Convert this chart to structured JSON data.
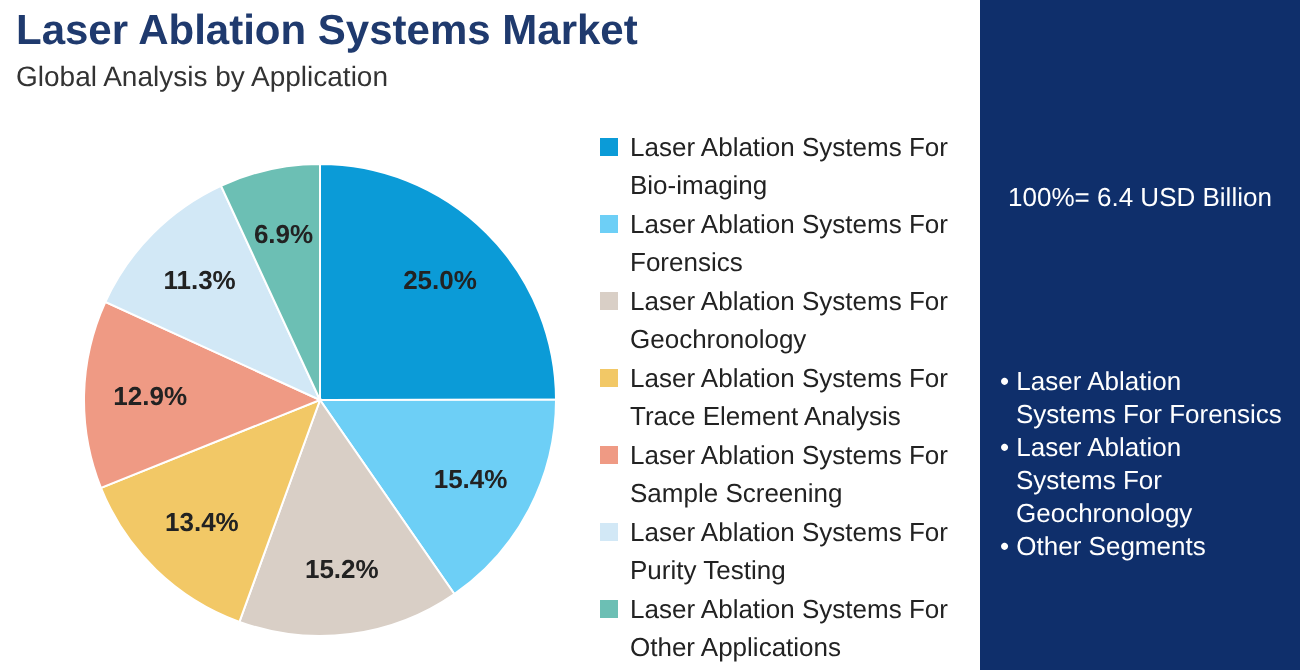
{
  "chart_data": {
    "type": "pie",
    "title": "Laser Ablation Systems Market",
    "subtitle": "Global Analysis by Application",
    "categories": [
      "Laser Ablation Systems For Bio-imaging",
      "Laser Ablation Systems For Forensics",
      "Laser Ablation Systems For Geochronology",
      "Laser Ablation Systems For Trace Element Analysis",
      "Laser Ablation Systems For Sample Screening",
      "Laser Ablation Systems For Purity Testing",
      "Laser Ablation Systems For Other Applications"
    ],
    "values": [
      25.0,
      15.4,
      15.2,
      13.4,
      12.9,
      11.3,
      6.9
    ],
    "value_labels": [
      "25.0%",
      "15.4%",
      "15.2%",
      "13.4%",
      "12.9%",
      "11.3%",
      "6.9%"
    ],
    "colors": [
      "#0b9bd7",
      "#6dcff6",
      "#d9cfc6",
      "#f2c866",
      "#ef9a84",
      "#d2e8f6",
      "#6cbfb4"
    ],
    "legend": "right",
    "annotations": [
      "100%= 6.4 USD Billion",
      "• Laser Ablation Systems For Forensics",
      "• Laser Ablation Systems For Geochronology",
      "• Other Segments"
    ]
  }
}
